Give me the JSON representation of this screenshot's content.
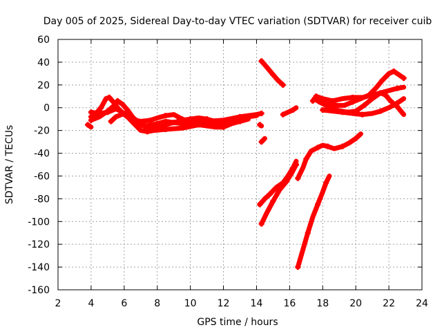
{
  "chart_data": {
    "type": "line",
    "title": "Day 005 of 2025, Sidereal Day-to-day VTEC variation (SDTVAR) for receiver cuib",
    "xlabel": "GPS time / hours",
    "ylabel": "SDTVAR / TECUs",
    "xlim": [
      2,
      24
    ],
    "ylim": [
      -160,
      60
    ],
    "xticks": [
      2,
      4,
      6,
      8,
      10,
      12,
      14,
      16,
      18,
      20,
      22,
      24
    ],
    "yticks": [
      60,
      40,
      20,
      0,
      -20,
      -40,
      -60,
      -80,
      -100,
      -120,
      -140,
      -160
    ],
    "grid": true,
    "series_color": "#ff0000",
    "series": [
      {
        "points": [
          [
            3.8,
            -15
          ],
          [
            4.0,
            -17
          ]
        ]
      },
      {
        "points": [
          [
            4.0,
            -8
          ],
          [
            4.3,
            -5
          ],
          [
            4.6,
            0
          ],
          [
            4.9,
            8
          ],
          [
            5.1,
            9
          ],
          [
            5.4,
            4
          ],
          [
            5.7,
            -2
          ],
          [
            6.0,
            -6
          ],
          [
            6.4,
            -10
          ],
          [
            7.0,
            -12
          ],
          [
            7.6,
            -11
          ],
          [
            8.0,
            -9
          ],
          [
            8.5,
            -7
          ],
          [
            9.0,
            -6
          ],
          [
            9.5,
            -10
          ],
          [
            10.0,
            -12
          ],
          [
            11.0,
            -12
          ],
          [
            12.0,
            -11
          ],
          [
            13.0,
            -8
          ],
          [
            14.0,
            -6
          ],
          [
            14.3,
            -5
          ]
        ]
      },
      {
        "points": [
          [
            4.0,
            -11
          ],
          [
            4.5,
            -8
          ],
          [
            5.0,
            -3
          ],
          [
            5.4,
            2
          ],
          [
            5.6,
            6
          ],
          [
            5.9,
            3
          ],
          [
            6.2,
            -2
          ],
          [
            6.6,
            -10
          ],
          [
            7.0,
            -15
          ],
          [
            7.5,
            -18
          ],
          [
            8.0,
            -17
          ],
          [
            8.5,
            -15
          ],
          [
            9.0,
            -13
          ],
          [
            9.5,
            -11
          ],
          [
            10.0,
            -10
          ],
          [
            10.5,
            -9
          ],
          [
            11.0,
            -10
          ],
          [
            11.5,
            -12
          ],
          [
            12.0,
            -13
          ],
          [
            12.5,
            -11
          ],
          [
            13.0,
            -9
          ],
          [
            14.0,
            -7
          ]
        ]
      },
      {
        "points": [
          [
            4.0,
            -4
          ],
          [
            4.5,
            -5
          ],
          [
            5.0,
            -4
          ],
          [
            5.5,
            -1
          ],
          [
            5.8,
            -3
          ],
          [
            6.2,
            -8
          ],
          [
            6.6,
            -14
          ],
          [
            7.0,
            -20
          ],
          [
            7.4,
            -21
          ],
          [
            7.8,
            -20
          ],
          [
            8.5,
            -19
          ],
          [
            9.5,
            -18
          ],
          [
            10.5,
            -15
          ],
          [
            11.5,
            -17
          ],
          [
            12.0,
            -17
          ],
          [
            12.5,
            -14
          ],
          [
            13.0,
            -12
          ],
          [
            13.5,
            -10
          ]
        ]
      },
      {
        "points": [
          [
            5.2,
            -12
          ],
          [
            5.5,
            -8
          ],
          [
            6.0,
            -5
          ],
          [
            6.4,
            -7
          ],
          [
            6.8,
            -12
          ],
          [
            7.3,
            -16
          ],
          [
            8.0,
            -14
          ],
          [
            8.5,
            -12
          ],
          [
            9.5,
            -14
          ],
          [
            10.5,
            -13
          ],
          [
            11.5,
            -14
          ],
          [
            12.0,
            -15
          ]
        ]
      },
      {
        "points": [
          [
            14.2,
            -15
          ],
          [
            14.3,
            -16
          ]
        ]
      },
      {
        "points": [
          [
            14.3,
            41
          ],
          [
            14.6,
            36
          ],
          [
            15.0,
            29
          ],
          [
            15.3,
            24
          ],
          [
            15.6,
            20
          ]
        ]
      },
      {
        "points": [
          [
            14.3,
            -30
          ],
          [
            14.5,
            -27
          ]
        ]
      },
      {
        "points": [
          [
            15.6,
            -6
          ],
          [
            15.9,
            -4
          ],
          [
            16.2,
            -2
          ],
          [
            16.4,
            0
          ]
        ]
      },
      {
        "points": [
          [
            14.2,
            -85
          ],
          [
            14.5,
            -80
          ],
          [
            14.8,
            -76
          ],
          [
            15.2,
            -70
          ],
          [
            15.6,
            -66
          ],
          [
            15.9,
            -60
          ],
          [
            16.2,
            -53
          ],
          [
            16.4,
            -47
          ]
        ]
      },
      {
        "points": [
          [
            14.3,
            -102
          ],
          [
            14.6,
            -93
          ],
          [
            15.0,
            -82
          ],
          [
            15.4,
            -72
          ],
          [
            15.8,
            -65
          ],
          [
            16.1,
            -58
          ],
          [
            16.4,
            -50
          ]
        ]
      },
      {
        "points": [
          [
            16.5,
            -62
          ],
          [
            16.8,
            -53
          ],
          [
            17.0,
            -45
          ],
          [
            17.3,
            -38
          ],
          [
            17.7,
            -35
          ],
          [
            18.0,
            -33
          ],
          [
            18.3,
            -34
          ],
          [
            18.7,
            -36
          ],
          [
            19.2,
            -34
          ],
          [
            19.6,
            -31
          ],
          [
            20.0,
            -27
          ],
          [
            20.3,
            -23
          ]
        ]
      },
      {
        "points": [
          [
            16.5,
            -140
          ],
          [
            16.8,
            -125
          ],
          [
            17.1,
            -110
          ],
          [
            17.4,
            -96
          ],
          [
            17.7,
            -85
          ],
          [
            18.0,
            -74
          ],
          [
            18.2,
            -66
          ],
          [
            18.4,
            -60
          ]
        ]
      },
      {
        "points": [
          [
            17.4,
            6
          ],
          [
            17.7,
            9
          ],
          [
            18.0,
            7
          ],
          [
            18.4,
            3
          ],
          [
            18.8,
            2
          ],
          [
            19.3,
            2
          ],
          [
            19.8,
            5
          ],
          [
            20.3,
            8
          ],
          [
            20.8,
            11
          ],
          [
            21.2,
            17
          ],
          [
            21.6,
            24
          ],
          [
            22.0,
            30
          ],
          [
            22.3,
            32
          ],
          [
            22.6,
            29
          ],
          [
            22.9,
            26
          ]
        ]
      },
      {
        "points": [
          [
            17.5,
            8
          ],
          [
            17.8,
            5
          ],
          [
            18.2,
            2
          ],
          [
            18.8,
            -2
          ],
          [
            19.5,
            -4
          ],
          [
            20.0,
            -3
          ],
          [
            20.5,
            2
          ],
          [
            21.0,
            8
          ],
          [
            21.5,
            13
          ],
          [
            22.0,
            15
          ],
          [
            22.5,
            17
          ],
          [
            22.9,
            18
          ]
        ]
      },
      {
        "points": [
          [
            17.6,
            10
          ],
          [
            18.0,
            8
          ],
          [
            18.6,
            6
          ],
          [
            19.2,
            8
          ],
          [
            19.8,
            9
          ],
          [
            20.4,
            9
          ],
          [
            21.0,
            11
          ],
          [
            21.5,
            13
          ],
          [
            21.8,
            11
          ],
          [
            22.1,
            6
          ],
          [
            22.5,
            1
          ],
          [
            22.9,
            -6
          ]
        ]
      },
      {
        "points": [
          [
            18.0,
            -2
          ],
          [
            18.6,
            -3
          ],
          [
            19.2,
            -4
          ],
          [
            19.8,
            -5
          ],
          [
            20.4,
            -6
          ],
          [
            21.0,
            -5
          ],
          [
            21.5,
            -3
          ],
          [
            22.0,
            0
          ],
          [
            22.5,
            4
          ],
          [
            22.9,
            8
          ]
        ]
      }
    ]
  }
}
